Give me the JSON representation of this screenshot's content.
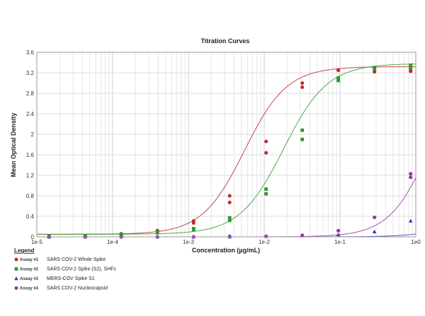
{
  "chart_data": {
    "type": "scatter",
    "title": "Titration Curves",
    "xlabel": "Concentration (µg/mL)",
    "ylabel": "Mean Optical Density",
    "x_scale": "log",
    "xlim": [
      1e-05,
      1
    ],
    "ylim": [
      0,
      3.6
    ],
    "x_tick_labels": [
      "1e-5",
      "1e-4",
      "1e-3",
      "1e-2",
      "1e-1",
      "1e0"
    ],
    "x_ticks": [
      1e-05,
      0.0001,
      0.001,
      0.01,
      0.1,
      1
    ],
    "y_ticks": [
      0,
      0.4,
      0.8,
      1.2,
      1.6,
      2,
      2.4,
      2.8,
      3.2,
      3.6
    ],
    "y_tick_labels": [
      "0",
      "0.4",
      "0.8",
      "1.2",
      "1.6",
      "2",
      "2.4",
      "2.8",
      "3.2",
      "3.6"
    ],
    "grid": true,
    "legend_title": "Legend",
    "legend_position": "bottom-left",
    "series": [
      {
        "id": "Assay #1",
        "name": "SARS COV-2 Whole Spike",
        "color": "#c0282a",
        "marker": "circle",
        "fit": {
          "bottom": 0.05,
          "top": 3.32,
          "ec50": 0.0055,
          "hill": 1.55
        },
        "points": [
          [
            1.45e-05,
            0.0
          ],
          [
            1.45e-05,
            0.0
          ],
          [
            4.35e-05,
            0.01
          ],
          [
            4.35e-05,
            0.01
          ],
          [
            0.00013,
            0.05
          ],
          [
            0.00013,
            0.06
          ],
          [
            0.00039,
            0.1
          ],
          [
            0.00039,
            0.12
          ],
          [
            0.00117,
            0.27
          ],
          [
            0.00117,
            0.31
          ],
          [
            0.0035,
            0.67
          ],
          [
            0.0035,
            0.8
          ],
          [
            0.0106,
            1.64
          ],
          [
            0.0106,
            1.86
          ],
          [
            0.0318,
            2.92
          ],
          [
            0.0318,
            3.0
          ],
          [
            0.095,
            3.25
          ],
          [
            0.095,
            3.25
          ],
          [
            0.285,
            3.22
          ],
          [
            0.285,
            3.3
          ],
          [
            0.855,
            3.23
          ],
          [
            0.855,
            3.28
          ]
        ]
      },
      {
        "id": "Assay #2",
        "name": "SARS COV-2 Spike (S2), SHFc",
        "color": "#2e9a2e",
        "marker": "square",
        "fit": {
          "bottom": 0.05,
          "top": 3.38,
          "ec50": 0.018,
          "hill": 1.5
        },
        "points": [
          [
            1.45e-05,
            0.0
          ],
          [
            1.45e-05,
            0.01
          ],
          [
            4.35e-05,
            0.01
          ],
          [
            4.35e-05,
            0.02
          ],
          [
            0.00013,
            0.04
          ],
          [
            0.00013,
            0.05
          ],
          [
            0.00039,
            0.08
          ],
          [
            0.00039,
            0.09
          ],
          [
            0.00117,
            0.14
          ],
          [
            0.00117,
            0.16
          ],
          [
            0.0035,
            0.32
          ],
          [
            0.0035,
            0.37
          ],
          [
            0.0106,
            0.84
          ],
          [
            0.0106,
            0.93
          ],
          [
            0.0318,
            1.9
          ],
          [
            0.0318,
            2.08
          ],
          [
            0.095,
            3.05
          ],
          [
            0.095,
            3.1
          ],
          [
            0.285,
            3.28
          ],
          [
            0.285,
            3.3
          ],
          [
            0.855,
            3.3
          ],
          [
            0.855,
            3.35
          ]
        ]
      },
      {
        "id": "Assay #3",
        "name": "MERS-COV Spike S1",
        "color": "#2a3fbf",
        "marker": "triangle",
        "fit": {
          "bottom": 0.0,
          "top": 3.3,
          "ec50": 15.0,
          "hill": 1.5
        },
        "points": [
          [
            1.45e-05,
            0.0
          ],
          [
            4.35e-05,
            0.0
          ],
          [
            0.00013,
            0.0
          ],
          [
            0.00039,
            0.0
          ],
          [
            0.00117,
            0.0
          ],
          [
            0.0035,
            0.0
          ],
          [
            0.0106,
            0.01
          ],
          [
            0.0318,
            0.02
          ],
          [
            0.095,
            0.04
          ],
          [
            0.285,
            0.1
          ],
          [
            0.855,
            0.31
          ]
        ]
      },
      {
        "id": "Assay #4",
        "name": "SARS COV-2 Nucleocapsid",
        "color": "#9a2fa8",
        "marker": "circle",
        "fit": {
          "bottom": 0.0,
          "top": 3.6,
          "ec50": 1.6,
          "hill": 1.6
        },
        "points": [
          [
            1.45e-05,
            0.0
          ],
          [
            4.35e-05,
            0.0
          ],
          [
            0.00013,
            0.0
          ],
          [
            0.00039,
            0.0
          ],
          [
            0.00117,
            0.0
          ],
          [
            0.0035,
            0.01
          ],
          [
            0.0106,
            0.01
          ],
          [
            0.0318,
            0.03
          ],
          [
            0.095,
            0.12
          ],
          [
            0.285,
            0.38
          ],
          [
            0.855,
            1.16
          ],
          [
            0.855,
            1.23
          ]
        ]
      }
    ]
  }
}
